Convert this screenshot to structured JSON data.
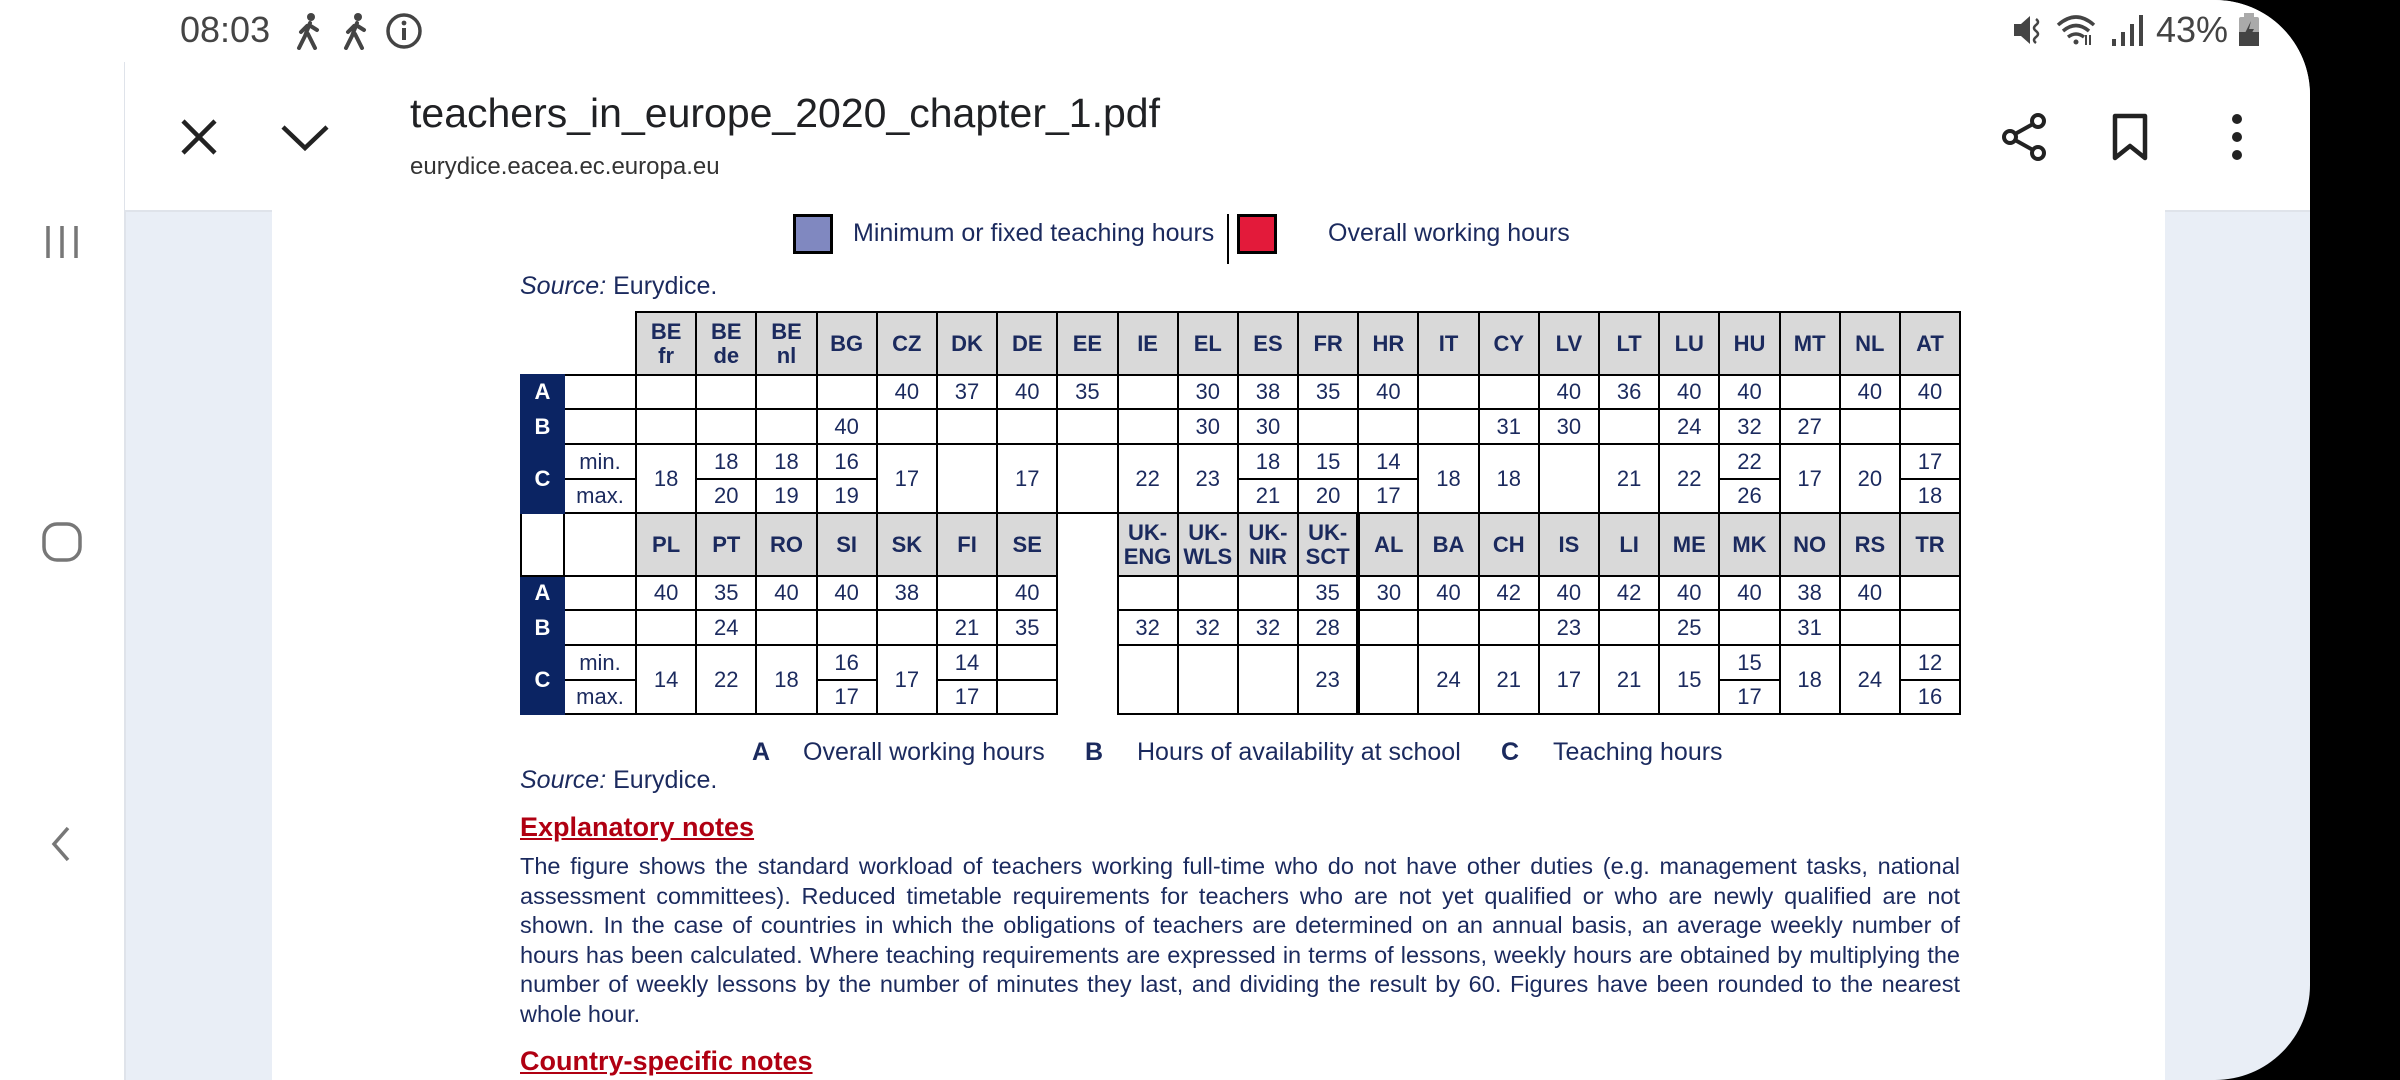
{
  "status_bar": {
    "time": "08:03",
    "battery": "43%",
    "icons": [
      "walking-icon",
      "walking-icon",
      "info-icon",
      "mute-icon",
      "wifi-icon",
      "signal-icon",
      "battery-charging-icon"
    ]
  },
  "toolbar": {
    "title": "teachers_in_europe_2020_chapter_1.pdf",
    "url": "eurydice.eacea.ec.europa.eu",
    "icons": [
      "close-icon",
      "chevron-down-icon",
      "share-icon",
      "bookmark-icon",
      "more-vert-icon"
    ]
  },
  "nav": {
    "icons": [
      "recent-apps-icon",
      "home-icon",
      "back-icon"
    ]
  },
  "top_legend": {
    "items": [
      {
        "label": "Minimum or fixed teaching hours",
        "color": "#8088c0"
      },
      {
        "label": "Overall working hours",
        "color": "#e31a3a"
      }
    ]
  },
  "source1": {
    "prefix": "Source:",
    "text": " Eurydice."
  },
  "table": {
    "row_labels": {
      "a": "A",
      "b": "B",
      "c": "C",
      "min": "min.",
      "max": "max."
    },
    "blocks": [
      {
        "countries": [
          {
            "code": "BE\nfr",
            "a": "",
            "b": "",
            "c": "18"
          },
          {
            "code": "BE\nde",
            "a": "",
            "b": "",
            "c": [
              "18",
              "20"
            ]
          },
          {
            "code": "BE\nnl",
            "a": "",
            "b": "",
            "c": [
              "18",
              "19"
            ]
          },
          {
            "code": "BG",
            "a": "",
            "b": "40",
            "c": [
              "16",
              "19"
            ]
          },
          {
            "code": "CZ",
            "a": "40",
            "b": "",
            "c": "17"
          },
          {
            "code": "DK",
            "a": "37",
            "b": "",
            "c": ""
          },
          {
            "code": "DE",
            "a": "40",
            "b": "",
            "c": "17"
          },
          {
            "code": "EE",
            "a": "35",
            "b": "",
            "c": ""
          },
          {
            "code": "IE",
            "a": "",
            "b": "",
            "c": "22"
          },
          {
            "code": "EL",
            "a": "30",
            "b": "30",
            "c": "23"
          },
          {
            "code": "ES",
            "a": "38",
            "b": "30",
            "c": [
              "18",
              "21"
            ]
          },
          {
            "code": "FR",
            "a": "35",
            "b": "",
            "c": [
              "15",
              "20"
            ]
          },
          {
            "code": "HR",
            "a": "40",
            "b": "",
            "c": [
              "14",
              "17"
            ]
          },
          {
            "code": "IT",
            "a": "",
            "b": "",
            "c": "18"
          },
          {
            "code": "CY",
            "a": "",
            "b": "31",
            "c": "18"
          },
          {
            "code": "LV",
            "a": "40",
            "b": "30",
            "c": ""
          },
          {
            "code": "LT",
            "a": "36",
            "b": "",
            "c": "21"
          },
          {
            "code": "LU",
            "a": "40",
            "b": "24",
            "c": "22"
          },
          {
            "code": "HU",
            "a": "40",
            "b": "32",
            "c": [
              "22",
              "26"
            ]
          },
          {
            "code": "MT",
            "a": "",
            "b": "27",
            "c": "17"
          },
          {
            "code": "NL",
            "a": "40",
            "b": "",
            "c": "20"
          },
          {
            "code": "AT",
            "a": "40",
            "b": "",
            "c": [
              "17",
              "18"
            ]
          }
        ]
      },
      {
        "countries": [
          {
            "code": "PL",
            "a": "40",
            "b": "",
            "c": "14"
          },
          {
            "code": "PT",
            "a": "35",
            "b": "24",
            "c": "22"
          },
          {
            "code": "RO",
            "a": "40",
            "b": "",
            "c": "18"
          },
          {
            "code": "SI",
            "a": "40",
            "b": "",
            "c": [
              "16",
              "17"
            ]
          },
          {
            "code": "SK",
            "a": "38",
            "b": "",
            "c": "17"
          },
          {
            "code": "FI",
            "a": "",
            "b": "21",
            "c": [
              "14",
              "17"
            ]
          },
          {
            "code": "SE",
            "a": "40",
            "b": "35",
            "c": [
              "",
              ""
            ]
          },
          null,
          {
            "code": "UK-\nENG",
            "a": "",
            "b": "32",
            "c": ""
          },
          {
            "code": "UK-\nWLS",
            "a": "",
            "b": "32",
            "c": ""
          },
          {
            "code": "UK-\nNIR",
            "a": "",
            "b": "32",
            "c": ""
          },
          {
            "code": "UK-\nSCT",
            "a": "35",
            "b": "28",
            "c": "23"
          },
          {
            "code": "AL",
            "a": "30",
            "b": "",
            "c": ""
          },
          {
            "code": "BA",
            "a": "40",
            "b": "",
            "c": "24"
          },
          {
            "code": "CH",
            "a": "42",
            "b": "",
            "c": "21"
          },
          {
            "code": "IS",
            "a": "40",
            "b": "23",
            "c": "17"
          },
          {
            "code": "LI",
            "a": "42",
            "b": "",
            "c": "21"
          },
          {
            "code": "ME",
            "a": "40",
            "b": "25",
            "c": "15"
          },
          {
            "code": "MK",
            "a": "40",
            "b": "",
            "c": [
              "15",
              "17"
            ]
          },
          {
            "code": "NO",
            "a": "38",
            "b": "31",
            "c": "18"
          },
          {
            "code": "RS",
            "a": "40",
            "b": "",
            "c": "24"
          },
          {
            "code": "TR",
            "a": "",
            "b": "",
            "c": [
              "12",
              "16"
            ]
          }
        ]
      }
    ]
  },
  "key": [
    {
      "letter": "A",
      "label": "Overall working hours"
    },
    {
      "letter": "B",
      "label": "Hours of availability at school"
    },
    {
      "letter": "C",
      "label": "Teaching hours"
    }
  ],
  "source2": {
    "prefix": "Source:",
    "text": " Eurydice."
  },
  "explanatory": {
    "heading": "Explanatory notes",
    "text": "The figure shows the standard workload of teachers working full-time who do not have other duties (e.g. management tasks, national assessment committees). Reduced timetable requirements for teachers who are not yet qualified or who are newly qualified are not shown. In the case of countries in which the obligations of teachers are determined on an annual basis, an average weekly number of hours has been calculated. Where teaching requirements are expressed in terms of lessons, weekly hours are obtained by multiplying the number of weekly lessons by the number of minutes they last, and dividing the result by 60. Figures have been rounded to the nearest whole hour."
  },
  "country_notes": {
    "heading": "Country-specific notes"
  }
}
